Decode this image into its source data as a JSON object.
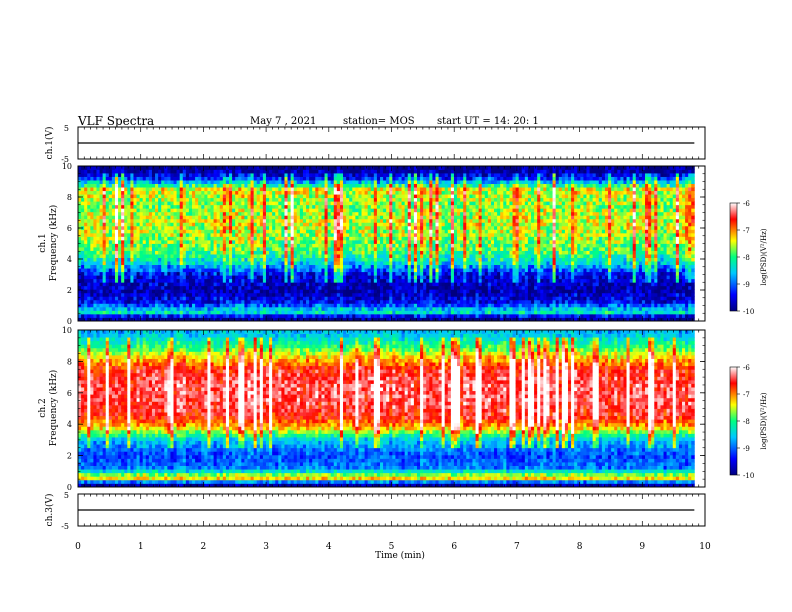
{
  "header": {
    "title": "VLF Spectra",
    "date": "May 7 , 2021",
    "station": "station= MOS",
    "start": "start UT =  14: 20: 1"
  },
  "chart_data": [
    {
      "type": "line",
      "panel": "ch1-waveform",
      "ylabel": "ch.1(V)",
      "xlim": [
        0,
        10
      ],
      "ylim": [
        -5,
        5
      ],
      "yticks": [
        "5",
        "-5"
      ],
      "series": [
        {
          "x": [
            0,
            9.83
          ],
          "y": [
            0,
            0
          ]
        }
      ]
    },
    {
      "type": "heatmap",
      "panel": "ch1-spectrogram",
      "ylabel": "ch.1",
      "ylabel2": "Frequency (kHz)",
      "xlim": [
        0,
        10
      ],
      "ylim": [
        0,
        10
      ],
      "yticks": [
        "0",
        "2",
        "4",
        "6",
        "8",
        "10"
      ],
      "colorbar": {
        "label": "log(PSD)(V²/Hz)",
        "range": [
          -10,
          -6
        ],
        "ticks": [
          "-6",
          "-7",
          "-8",
          "-9",
          "-10"
        ]
      },
      "profile": [
        {
          "f": 0.2,
          "level": -10
        },
        {
          "f": 0.6,
          "level": -8.2
        },
        {
          "f": 1.2,
          "level": -9.4
        },
        {
          "f": 2.0,
          "level": -9.8
        },
        {
          "f": 3.0,
          "level": -9.5
        },
        {
          "f": 3.8,
          "level": -8.4
        },
        {
          "f": 4.5,
          "level": -7.9
        },
        {
          "f": 5.5,
          "level": -7.6
        },
        {
          "f": 6.5,
          "level": -7.5
        },
        {
          "f": 7.5,
          "level": -7.7
        },
        {
          "f": 8.5,
          "level": -7.4
        },
        {
          "f": 9.2,
          "level": -9.2
        },
        {
          "f": 9.8,
          "level": -10
        }
      ]
    },
    {
      "type": "heatmap",
      "panel": "ch2-spectrogram",
      "ylabel": "ch.2",
      "ylabel2": "Frequency (kHz)",
      "xlim": [
        0,
        10
      ],
      "ylim": [
        0,
        10
      ],
      "yticks": [
        "0",
        "2",
        "4",
        "6",
        "8",
        "10"
      ],
      "colorbar": {
        "label": "log(PSD)(V²/Hz)",
        "range": [
          -10,
          -6
        ],
        "ticks": [
          "-6",
          "-7",
          "-8",
          "-9",
          "-10"
        ]
      },
      "profile": [
        {
          "f": 0.2,
          "level": -9.8
        },
        {
          "f": 0.6,
          "level": -7.1
        },
        {
          "f": 1.2,
          "level": -8.9
        },
        {
          "f": 2.0,
          "level": -9.1
        },
        {
          "f": 3.0,
          "level": -8.6
        },
        {
          "f": 3.8,
          "level": -7.2
        },
        {
          "f": 4.5,
          "level": -6.6
        },
        {
          "f": 5.5,
          "level": -6.4
        },
        {
          "f": 6.5,
          "level": -6.4
        },
        {
          "f": 7.5,
          "level": -6.6
        },
        {
          "f": 8.3,
          "level": -7.3
        },
        {
          "f": 9.0,
          "level": -8.0
        },
        {
          "f": 9.8,
          "level": -8.6
        }
      ]
    },
    {
      "type": "line",
      "panel": "ch3-waveform",
      "ylabel": "ch.3(V)",
      "xlabel": "Time (min)",
      "xlim": [
        0,
        10
      ],
      "ylim": [
        -5,
        5
      ],
      "yticks": [
        "5",
        "-5"
      ],
      "xticks": [
        "0",
        "1",
        "2",
        "3",
        "4",
        "5",
        "6",
        "7",
        "8",
        "9",
        "10"
      ],
      "series": [
        {
          "x": [
            0,
            9.83
          ],
          "y": [
            0,
            0
          ]
        }
      ]
    }
  ],
  "colors": {
    "axis": "#000000",
    "colormap": [
      "#000080",
      "#0000ff",
      "#00c8ff",
      "#00ff80",
      "#ffff00",
      "#ff0000",
      "#ffffff"
    ]
  }
}
